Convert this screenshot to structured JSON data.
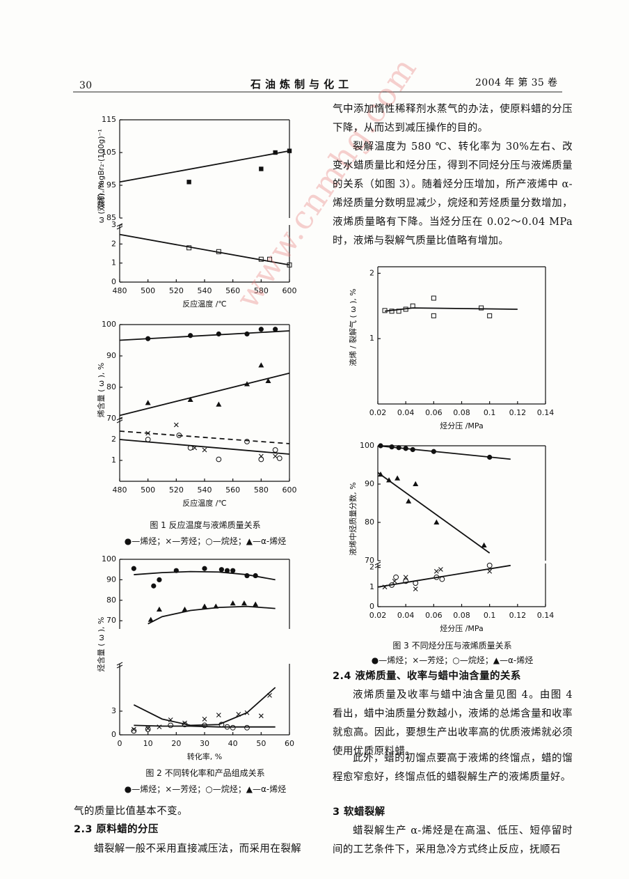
{
  "header": {
    "page": "30",
    "journal": "石 油 炼 制 与 化 工",
    "issue": "2004 年  第 35 卷"
  },
  "watermark": "www.cnmhg.com",
  "left": {
    "fig1": {
      "caption": "图 1   反应温度与液烯质量关系",
      "legend": "●—烯烃；×—芳烃；○—烷烃；▲—α-烯烃"
    },
    "fig2": {
      "caption": "图 2   不同转化率和产品组成关系",
      "legend": "●—烯烃；×—芳烃；○—烷烃；▲—α-烯烃"
    },
    "tail": "气的质量比值基本不变。",
    "heading": "2.3   原料蜡的分压",
    "paragraph": "蜡裂解一般不采用直接减压法，而采用在裂解"
  },
  "right": {
    "paragraph1": "气中添加惰性稀释剂水蒸气的办法，使原料蜡的分压下降，从而达到减压操作的目的。",
    "paragraph2": "裂解温度为 580 ℃、转化率为 30%左右、改变水蜡质量比和烃分压，得到不同烃分压与液烯质量的关系（如图 3）。随着烃分压增加，所产液烯中 α-烯烃质量分数明显减少，烷烃和芳烃质量分数增加，液烯质量略有下降。当烃分压在 0.02～0.04 MPa 时，液烯与裂解气质量比值略有增加。",
    "fig3": {
      "caption": "图 3   不同烃分压与液烯质量关系",
      "legend": "●—烯烃；×—芳烃；○—烷烃；▲—α-烯烃"
    },
    "heading1": "2.4   液烯质量、收率与蜡中油含量的关系",
    "paragraph3": "液烯质量及收率与蜡中油含量见图 4。由图 4 看出，蜡中油质量分数越小，液烯的总烯含量和收率就愈高。因此，要想生产出收率高的优质液烯就必须使用优质原料蜡。",
    "paragraph4": "此外，蜡的初馏点要高于液烯的终馏点，蜡的馏程愈窄愈好，终馏点低的蜡裂解生产的液烯质量好。",
    "heading2": "3   软蜡裂解",
    "paragraph5": "蜡裂解生产 α-烯烃是在高温、低压、短停留时间的工艺条件下，采用急冷方式终止反应，抚顺石"
  },
  "chart_data": [
    {
      "type": "scatter",
      "ylabel": "溴价 /mgBr₂·(100g)⁻¹",
      "xlim": [
        480,
        600
      ],
      "ylim": [
        85,
        115
      ],
      "yticks": [
        85,
        95,
        105,
        115
      ],
      "series": [
        {
          "marker": "square",
          "x": [
            529,
            580,
            590,
            600
          ],
          "values": [
            96,
            100,
            105,
            105.5
          ],
          "fit": {
            "x": [
              480,
              600
            ],
            "values": [
              96,
              105.5
            ],
            "dash": false
          }
        }
      ]
    },
    {
      "type": "scatter",
      "ylabel": "ω (双烯), %",
      "xlabel": "反应温度 /℃",
      "xlim": [
        480,
        600
      ],
      "xticks": [
        480,
        500,
        520,
        540,
        560,
        580,
        600
      ],
      "ylim": [
        0,
        3
      ],
      "yticks": [
        0,
        1,
        2,
        3
      ],
      "series": [
        {
          "marker": "square-open",
          "x": [
            529,
            550,
            580,
            586,
            600
          ],
          "values": [
            1.8,
            1.6,
            1.2,
            1.2,
            0.9
          ],
          "fit": {
            "x": [
              480,
              600
            ],
            "values": [
              2.5,
              0.9
            ],
            "dash": false
          }
        }
      ]
    },
    {
      "type": "scatter",
      "xlim": [
        480,
        600
      ],
      "ylim": [
        70,
        100
      ],
      "yticks": [
        70,
        80,
        90,
        100
      ],
      "series": [
        {
          "marker": "circle",
          "x": [
            500,
            530,
            550,
            570,
            580,
            590
          ],
          "values": [
            95.5,
            96.5,
            97,
            97,
            98.5,
            98.5
          ],
          "fit": {
            "x": [
              480,
              600
            ],
            "values": [
              95,
              98
            ],
            "dash": false
          }
        },
        {
          "marker": "triangle",
          "x": [
            500,
            530,
            550,
            570,
            580,
            585
          ],
          "values": [
            75,
            76,
            74.5,
            81,
            87,
            82
          ],
          "fit": {
            "x": [
              480,
              600
            ],
            "values": [
              71,
              84.5
            ],
            "dash": false
          }
        }
      ]
    },
    {
      "type": "scatter",
      "ylabel": "烯含量 ( ω ), %",
      "xlabel": "反应温度 /℃",
      "xlim": [
        480,
        600
      ],
      "xticks": [
        480,
        500,
        520,
        540,
        560,
        580,
        600
      ],
      "ylim": [
        0,
        3
      ],
      "yticks": [
        1,
        2
      ],
      "series": [
        {
          "marker": "cross",
          "x": [
            500,
            520,
            533,
            540,
            580,
            590
          ],
          "values": [
            2.3,
            2.7,
            1.6,
            1.5,
            1.2,
            1.2
          ],
          "fit": {
            "x": [
              480,
              600
            ],
            "values": [
              2.4,
              1.8
            ],
            "dash": true
          }
        },
        {
          "marker": "circle-open",
          "x": [
            500,
            522,
            530,
            550,
            570,
            580,
            590,
            593
          ],
          "values": [
            2.0,
            2.2,
            1.6,
            1.05,
            1.9,
            1.05,
            1.5,
            1.1
          ],
          "fit": {
            "x": [
              480,
              600
            ],
            "values": [
              2.0,
              1.3
            ],
            "dash": false
          }
        }
      ]
    },
    {
      "type": "scatter",
      "xlim": [
        0,
        60
      ],
      "ylim": [
        66,
        100
      ],
      "yticks": [
        70,
        80,
        90,
        100
      ],
      "series": [
        {
          "marker": "circle",
          "x": [
            5,
            12,
            14,
            20,
            30,
            36,
            38,
            40,
            45,
            48
          ],
          "values": [
            95.5,
            87,
            90,
            94.5,
            95.5,
            95,
            94.5,
            94.5,
            92,
            92
          ],
          "fit": {
            "x": [
              5,
              15,
              25,
              35,
              45,
              55
            ],
            "values": [
              92.5,
              93.5,
              94,
              93.8,
              92.5,
              90
            ],
            "dash": false
          }
        },
        {
          "marker": "triangle",
          "x": [
            11,
            14,
            23,
            30,
            34,
            40,
            44,
            48
          ],
          "values": [
            70.5,
            75.5,
            75.5,
            77,
            77,
            78.5,
            78.5,
            78
          ],
          "fit": {
            "x": [
              10,
              15,
              25,
              35,
              45,
              55
            ],
            "values": [
              68.5,
              72,
              75,
              76.5,
              77,
              76
            ],
            "dash": false
          }
        }
      ]
    },
    {
      "type": "scatter",
      "ylabel": "烃含量 ( ω ), %",
      "xlabel": "转化率, %",
      "xlim": [
        0,
        60
      ],
      "xticks": [
        0,
        10,
        20,
        30,
        40,
        50,
        60
      ],
      "ylim": [
        0,
        9
      ],
      "yticks": [
        0,
        3
      ],
      "series": [
        {
          "marker": "cross",
          "x": [
            5,
            10,
            14,
            18,
            23,
            30,
            35,
            42,
            45,
            50,
            53
          ],
          "values": [
            0.7,
            0.8,
            1.0,
            1.9,
            1.5,
            2.0,
            2.5,
            2.6,
            2.8,
            2.4,
            5.0
          ],
          "fit": {
            "x": [
              5,
              15,
              25,
              35,
              45,
              55
            ],
            "values": [
              3.8,
              2.0,
              1.2,
              1.3,
              2.8,
              6
            ],
            "dash": false
          }
        },
        {
          "marker": "circle-open",
          "x": [
            5,
            10,
            18,
            23,
            30,
            36,
            38,
            40,
            45
          ],
          "values": [
            0.5,
            0.7,
            1.2,
            1.3,
            1.2,
            1.3,
            1.0,
            0.9,
            0.9
          ],
          "fit": {
            "x": [
              5,
              15,
              25,
              35,
              45,
              55
            ],
            "values": [
              1.2,
              1.1,
              1.1,
              1.0,
              1.0,
              1.0
            ],
            "dash": false
          }
        }
      ]
    },
    {
      "type": "scatter",
      "ylabel": "液烯 / 裂解气 ( ω ), %",
      "xlabel": "烃分压 /MPa",
      "xlim": [
        0.02,
        0.14
      ],
      "xticks": [
        0.02,
        0.04,
        0.06,
        0.08,
        0.1,
        0.12,
        0.14
      ],
      "ylim": [
        0,
        2.1
      ],
      "yticks": [
        1,
        2
      ],
      "series": [
        {
          "marker": "square-open",
          "x": [
            0.025,
            0.03,
            0.035,
            0.04,
            0.045,
            0.06,
            0.06,
            0.094,
            0.1
          ],
          "values": [
            1.43,
            1.42,
            1.42,
            1.45,
            1.5,
            1.62,
            1.35,
            1.47,
            1.35
          ],
          "fit": {
            "x": [
              0.025,
              0.045,
              0.12
            ],
            "values": [
              1.42,
              1.47,
              1.45
            ],
            "dash": false
          }
        }
      ]
    },
    {
      "type": "scatter",
      "xlim": [
        0.02,
        0.14
      ],
      "ylim": [
        70,
        100
      ],
      "yticks": [
        70,
        80,
        90,
        100
      ],
      "series": [
        {
          "marker": "circle",
          "x": [
            0.022,
            0.03,
            0.035,
            0.04,
            0.045,
            0.06,
            0.1
          ],
          "values": [
            100,
            99.7,
            99.5,
            99.3,
            99,
            98.5,
            97
          ],
          "fit": {
            "x": [
              0.02,
              0.115
            ],
            "values": [
              100,
              96.5
            ],
            "dash": false
          }
        },
        {
          "marker": "triangle",
          "x": [
            0.022,
            0.028,
            0.034,
            0.042,
            0.047,
            0.062,
            0.096
          ],
          "values": [
            92.5,
            91,
            91.5,
            85.5,
            90,
            80,
            74
          ],
          "fit": {
            "x": [
              0.02,
              0.1
            ],
            "values": [
              93,
              72
            ],
            "dash": false
          }
        }
      ]
    },
    {
      "type": "scatter",
      "ylabel": "液烯中烃质量分数, %",
      "xlabel": "烃分压 /MPa",
      "xlim": [
        0.02,
        0.14
      ],
      "xticks": [
        0.02,
        0.04,
        0.06,
        0.08,
        0.1,
        0.12,
        0.14
      ],
      "ylim": [
        0,
        2.2
      ],
      "yticks": [
        0,
        1,
        2
      ],
      "series": [
        {
          "marker": "cross",
          "x": [
            0.025,
            0.032,
            0.04,
            0.047,
            0.062,
            0.065,
            0.1
          ],
          "values": [
            1.0,
            1.3,
            1.5,
            0.9,
            1.8,
            1.9,
            1.8
          ],
          "fit": {
            "x": [
              0.02,
              0.115
            ],
            "values": [
              1.0,
              2.1
            ],
            "dash": false
          }
        },
        {
          "marker": "circle-open",
          "x": [
            0.03,
            0.033,
            0.04,
            0.047,
            0.062,
            0.066,
            0.1
          ],
          "values": [
            1.1,
            1.5,
            1.3,
            1.2,
            1.5,
            1.4,
            2.1
          ]
        }
      ]
    }
  ]
}
